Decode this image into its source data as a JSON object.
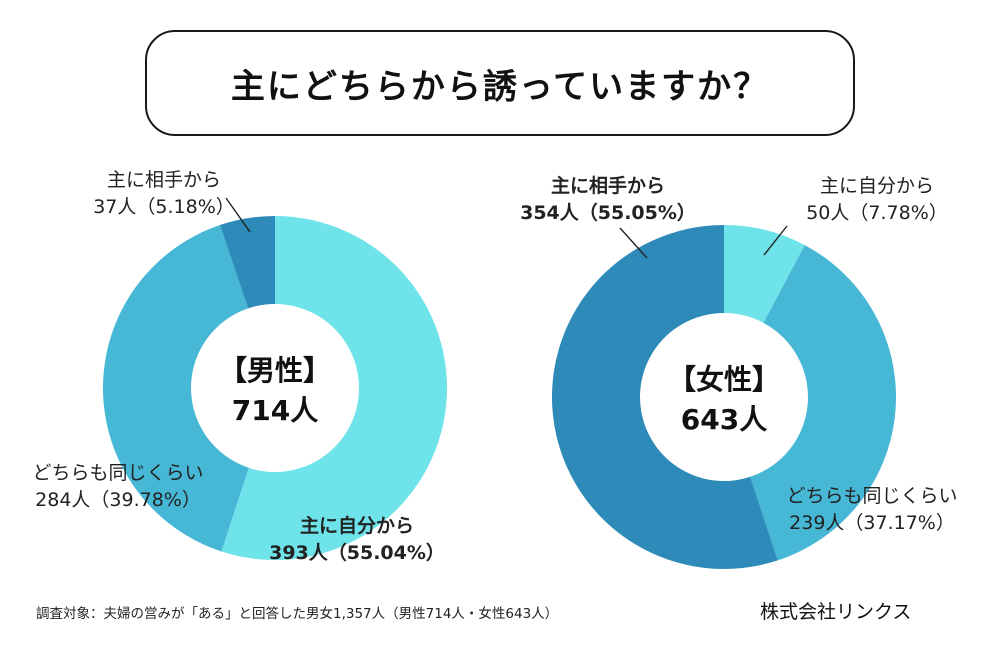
{
  "title": "主にどちらから誘っていますか？",
  "chart_data": [
    {
      "type": "pie",
      "donut": true,
      "center_label": "【男性】",
      "center_total": "714人",
      "slices": [
        {
          "name": "主に自分から",
          "count": 393,
          "percent": 55.04,
          "count_text": "393人（55.04%）",
          "color": "#6ee4ea",
          "bold": true
        },
        {
          "name": "どちらも同じくらい",
          "count": 284,
          "percent": 39.78,
          "count_text": "284人（39.78%）",
          "color": "#46b7d5",
          "bold": false
        },
        {
          "name": "主に相手から",
          "count": 37,
          "percent": 5.18,
          "count_text": "37人（5.18%）",
          "color": "#2e8ab8",
          "bold": false
        }
      ]
    },
    {
      "type": "pie",
      "donut": true,
      "center_label": "【女性】",
      "center_total": "643人",
      "slices": [
        {
          "name": "主に自分から",
          "count": 50,
          "percent": 7.78,
          "count_text": "50人（7.78%）",
          "color": "#6ee4ea",
          "bold": false
        },
        {
          "name": "どちらも同じくらい",
          "count": 239,
          "percent": 37.17,
          "count_text": "239人（37.17%）",
          "color": "#46b7d5",
          "bold": false
        },
        {
          "name": "主に相手から",
          "count": 354,
          "percent": 55.05,
          "count_text": "354人（55.05%）",
          "color": "#2e8ab8",
          "bold": true
        }
      ]
    }
  ],
  "footnote": "調査対象：夫婦の営みが「ある」と回答した男女1,357人（男性714人・女性643人）",
  "company": "株式会社リンクス"
}
